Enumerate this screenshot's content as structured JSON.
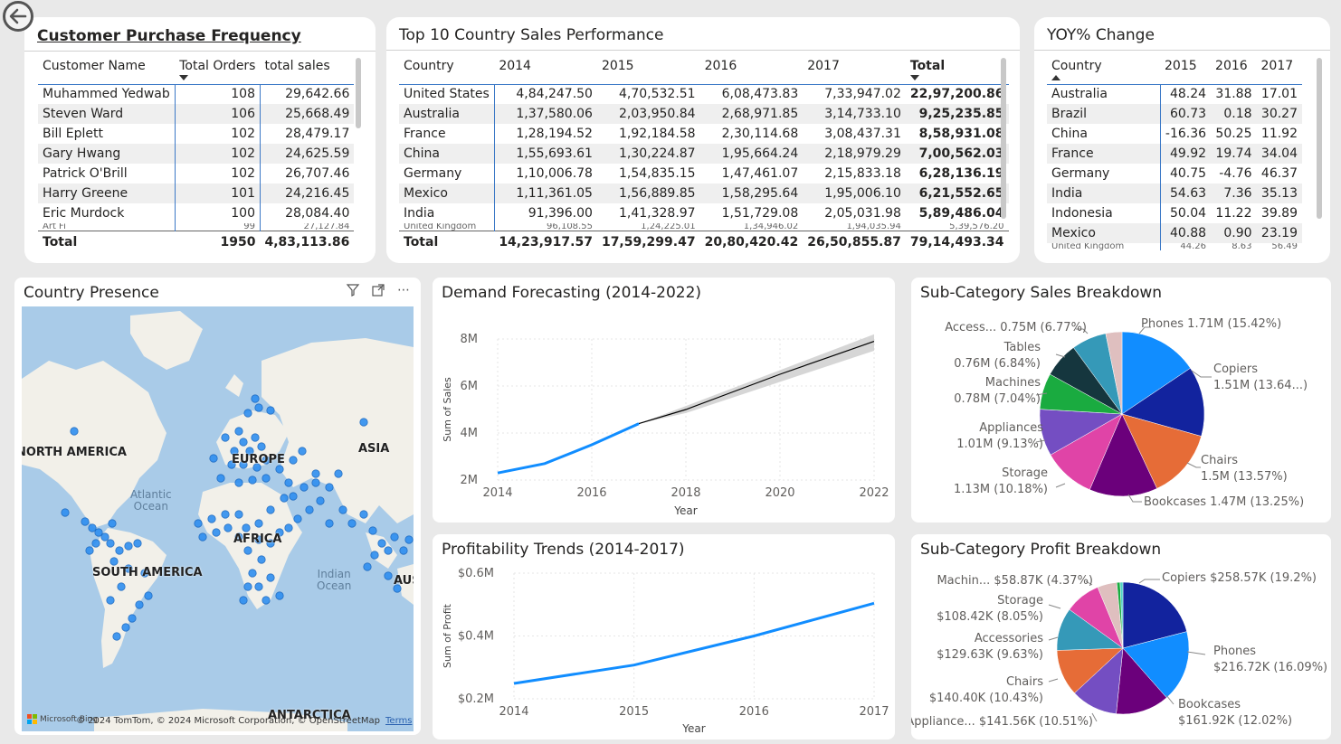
{
  "purchase_frequency": {
    "title": "Customer Purchase Frequency",
    "columns": [
      "Customer Name",
      "Total Orders",
      "total sales"
    ],
    "rows": [
      [
        "Muhammed Yedwab",
        "108",
        "29,642.66"
      ],
      [
        "Steven Ward",
        "106",
        "25,668.49"
      ],
      [
        "Bill Eplett",
        "102",
        "28,479.17"
      ],
      [
        "Gary Hwang",
        "102",
        "24,625.59"
      ],
      [
        "Patrick O'Brill",
        "102",
        "26,707.46"
      ],
      [
        "Harry Greene",
        "101",
        "24,216.45"
      ],
      [
        "Eric Murdock",
        "100",
        "28,084.40"
      ]
    ],
    "total": [
      "Total",
      "1950",
      "4,83,113.86"
    ]
  },
  "country_sales": {
    "title": "Top 10 Country Sales Performance",
    "columns": [
      "Country",
      "2014",
      "2015",
      "2016",
      "2017",
      "Total"
    ],
    "rows": [
      [
        "United States",
        "4,84,247.50",
        "4,70,532.51",
        "6,08,473.83",
        "7,33,947.02",
        "22,97,200.86"
      ],
      [
        "Australia",
        "1,37,580.06",
        "2,03,950.84",
        "2,68,971.85",
        "3,14,733.10",
        "9,25,235.85"
      ],
      [
        "France",
        "1,28,194.52",
        "1,92,184.58",
        "2,30,114.68",
        "3,08,437.31",
        "8,58,931.08"
      ],
      [
        "China",
        "1,55,693.61",
        "1,30,224.87",
        "1,95,664.24",
        "2,18,979.29",
        "7,00,562.03"
      ],
      [
        "Germany",
        "1,10,006.78",
        "1,54,835.15",
        "1,47,461.07",
        "2,15,833.18",
        "6,28,136.19"
      ],
      [
        "Mexico",
        "1,11,361.05",
        "1,56,889.85",
        "1,58,295.64",
        "1,95,006.10",
        "6,21,552.65"
      ],
      [
        "India",
        "91,396.00",
        "1,41,328.97",
        "1,51,729.08",
        "2,05,031.98",
        "5,89,486.04"
      ]
    ],
    "total": [
      "Total",
      "14,23,917.57",
      "17,59,299.47",
      "20,80,420.42",
      "26,50,855.87",
      "79,14,493.34"
    ]
  },
  "yoy": {
    "title": "YOY% Change",
    "columns": [
      "Country",
      "2015",
      "2016",
      "2017"
    ],
    "rows": [
      [
        "Australia",
        "48.24",
        "31.88",
        "17.01"
      ],
      [
        "Brazil",
        "60.73",
        "0.18",
        "30.27"
      ],
      [
        "China",
        "-16.36",
        "50.25",
        "11.92"
      ],
      [
        "France",
        "49.92",
        "19.74",
        "34.04"
      ],
      [
        "Germany",
        "40.75",
        "-4.76",
        "46.37"
      ],
      [
        "India",
        "54.63",
        "7.36",
        "35.13"
      ],
      [
        "Indonesia",
        "50.04",
        "11.22",
        "39.89"
      ],
      [
        "Mexico",
        "40.88",
        "0.90",
        "23.19"
      ]
    ]
  },
  "map": {
    "title": "Country Presence",
    "labels": {
      "north_america": "NORTH AMERICA",
      "europe": "EUROPE",
      "asia": "ASIA",
      "africa": "AFRICA",
      "south_america": "SOUTH AMERICA",
      "antarctica": "ANTARCTICA",
      "australia": "AUS",
      "atlantic": "Atlantic\nOcean",
      "indian": "Indian\nOcean"
    },
    "attribution": "© 2024 TomTom, © 2024 Microsoft Corporation, © OpenStreetMap",
    "terms": "Terms",
    "logo": "Microsoft Bing",
    "point_color": "#2f8ff0"
  },
  "demand": {
    "title": "Demand Forecasting (2014-2022)",
    "ylabel": "Sum of Sales",
    "xlabel": "Year",
    "yticks": [
      "8M",
      "6M",
      "4M",
      "2M"
    ],
    "xticks": [
      "2014",
      "2016",
      "2018",
      "2020",
      "2022"
    ]
  },
  "profit_trend": {
    "title": "Profitability Trends (2014-2017)",
    "ylabel": "Sum of Profit",
    "xlabel": "Year",
    "yticks": [
      "$0.6M",
      "$0.4M",
      "$0.2M"
    ],
    "xticks": [
      "2014",
      "2015",
      "2016",
      "2017"
    ]
  },
  "sales_breakdown": {
    "title": "Sub-Category Sales Breakdown",
    "labels": [
      {
        "l1": "Phones 1.71M (15.42%)",
        "l2": ""
      },
      {
        "l1": "Copiers",
        "l2": "1.51M (13.64...)"
      },
      {
        "l1": "Chairs",
        "l2": "1.5M (13.57%)"
      },
      {
        "l1": "Bookcases 1.47M (13.25%)",
        "l2": ""
      },
      {
        "l1": "Storage",
        "l2": "1.13M (10.18%)"
      },
      {
        "l1": "Appliances",
        "l2": "1.01M (9.13%)"
      },
      {
        "l1": "Machines",
        "l2": "0.78M (7.04%)"
      },
      {
        "l1": "Tables",
        "l2": "0.76M (6.84%)"
      },
      {
        "l1": "Access... 0.75M (6.77%)",
        "l2": ""
      }
    ]
  },
  "profit_breakdown": {
    "title": "Sub-Category Profit Breakdown",
    "labels": [
      {
        "l1": "Copiers $258.57K (19.2%)",
        "l2": ""
      },
      {
        "l1": "Phones",
        "l2": "$216.72K (16.09%)"
      },
      {
        "l1": "Bookcases",
        "l2": "$161.92K (12.02%)"
      },
      {
        "l1": "Appliance... $141.56K (10.51%)",
        "l2": ""
      },
      {
        "l1": "Chairs",
        "l2": "$140.40K (10.43%)"
      },
      {
        "l1": "Accessories",
        "l2": "$129.63K (9.63%)"
      },
      {
        "l1": "Storage",
        "l2": "$108.42K (8.05%)"
      },
      {
        "l1": "Machin... $58.87K (4.37%)",
        "l2": ""
      }
    ]
  },
  "chart_data": [
    {
      "type": "line",
      "title": "Demand Forecasting (2014-2022)",
      "xlabel": "Year",
      "ylabel": "Sum of Sales",
      "xlim": [
        2014,
        2022
      ],
      "ylim": [
        2000000,
        8000000
      ],
      "series": [
        {
          "x": [
            2014,
            2015,
            2016,
            2017
          ],
          "values": [
            2300000,
            2700000,
            3500000,
            4400000
          ]
        }
      ],
      "forecast": {
        "x": [
          2017,
          2018,
          2019,
          2020,
          2021,
          2022
        ],
        "values": [
          4400000,
          5000000,
          5750000,
          6500000,
          7200000,
          7900000
        ]
      },
      "forecast_band": {
        "x": [
          2017,
          2022
        ],
        "lower": [
          4400000,
          7500000
        ],
        "upper": [
          4400000,
          8200000
        ]
      },
      "colors": {
        "actual": "#118dff",
        "forecast": "#000000",
        "band": "#cccccc"
      }
    },
    {
      "type": "line",
      "title": "Profitability Trends (2014-2017)",
      "xlabel": "Year",
      "ylabel": "Sum of Profit",
      "xlim": [
        2014,
        2017
      ],
      "ylim": [
        200000,
        600000
      ],
      "series": [
        {
          "x": [
            2014,
            2015,
            2016,
            2017
          ],
          "values": [
            248940,
            307415,
            400000,
            504166
          ]
        }
      ],
      "colors": {
        "line": "#118dff"
      }
    },
    {
      "type": "pie",
      "title": "Sub-Category Sales Breakdown",
      "categories": [
        "Phones",
        "Copiers",
        "Chairs",
        "Bookcases",
        "Storage",
        "Appliances",
        "Machines",
        "Tables",
        "Accessories"
      ],
      "values": [
        1.71,
        1.51,
        1.5,
        1.47,
        1.13,
        1.01,
        0.78,
        0.76,
        0.75
      ],
      "colors": [
        "#118dff",
        "#12239e",
        "#e66c37",
        "#6b007b",
        "#e044a7",
        "#744ec2",
        "#1aab40",
        "#15363e",
        "#3599b8",
        "#dfbfbf"
      ],
      "extra_slice": 0.35
    },
    {
      "type": "pie",
      "title": "Sub-Category Profit Breakdown",
      "categories": [
        "Copiers",
        "Phones",
        "Bookcases",
        "Appliances",
        "Chairs",
        "Accessories",
        "Storage",
        "Machines"
      ],
      "values": [
        258.57,
        216.72,
        161.92,
        141.56,
        140.4,
        129.63,
        108.42,
        58.87
      ],
      "colors": [
        "#12239e",
        "#118dff",
        "#6b007b",
        "#744ec2",
        "#e66c37",
        "#3599b8",
        "#e044a7",
        "#dfbfbf",
        "#1aab40",
        "#4fd1c5"
      ],
      "extra_slices": [
        44,
        40
      ]
    }
  ]
}
